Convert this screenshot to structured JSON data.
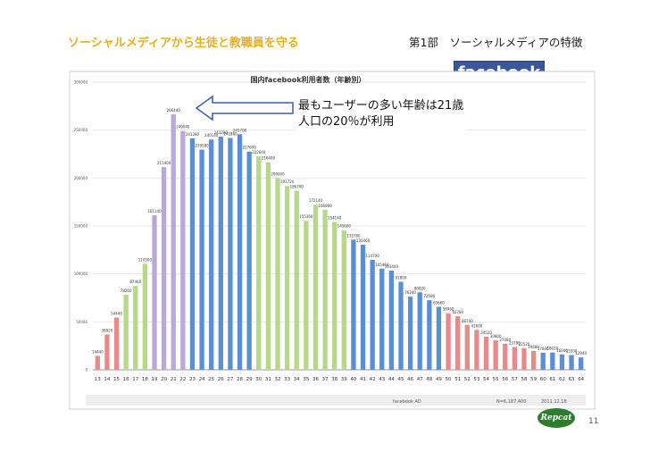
{
  "slide": {
    "title": "ソーシャルメディアから生徒と教職員を守る",
    "section": "第1部　ソーシャルメディアの特徴",
    "logo_text": "facebook",
    "callout_line1": "最もユーザーの多い年齢は21歳",
    "callout_line2": "人口の20％が利用",
    "page_number": "11",
    "brand_mark": "Repcat"
  },
  "chart_data": {
    "type": "bar",
    "title": "国内facebook利用者数（年齢別）",
    "xlabel": "",
    "ylabel": "",
    "ylim": [
      0,
      300000
    ],
    "yticks": [
      0,
      50000,
      100000,
      150000,
      200000,
      250000,
      300000
    ],
    "grid": true,
    "source": "facebook AD",
    "total_label": "N=6,187,400",
    "date_label": "2011.12.18",
    "categories": [
      "13",
      "14",
      "15",
      "16",
      "17",
      "18",
      "19",
      "20",
      "21",
      "22",
      "23",
      "24",
      "25",
      "26",
      "27",
      "28",
      "29",
      "30",
      "31",
      "32",
      "33",
      "34",
      "35",
      "36",
      "37",
      "38",
      "39",
      "40",
      "41",
      "42",
      "43",
      "44",
      "45",
      "46",
      "47",
      "48",
      "49",
      "50",
      "51",
      "52",
      "53",
      "54",
      "55",
      "56",
      "57",
      "58",
      "59",
      "60",
      "61",
      "62",
      "63",
      "64"
    ],
    "values": [
      14440,
      36920,
      54440,
      78260,
      87460,
      110500,
      161140,
      211400,
      266440,
      249040,
      241280,
      229580,
      240140,
      243280,
      241860,
      245700,
      227600,
      222640,
      216400,
      200000,
      191720,
      186700,
      155360,
      172140,
      166960,
      154140,
      145600,
      135760,
      130460,
      114700,
      105460,
      103400,
      91800,
      76240,
      80820,
      72580,
      65660,
      58960,
      55780,
      46740,
      41600,
      34520,
      30800,
      27080,
      23780,
      22520,
      19680,
      17840,
      18020,
      16040,
      15300,
      12940
    ],
    "bar_labels": [
      "14440",
      "36920",
      "54440",
      "78260",
      "87460",
      "110500",
      "161140",
      "211400",
      "266440",
      "249040",
      "241280",
      "229580",
      "240140",
      "243280",
      "241860",
      "245700",
      "227600",
      "222640",
      "216400",
      "200000",
      "191720",
      "186700",
      "155360",
      "172140",
      "166960",
      "154140",
      "145600",
      "135760",
      "130460",
      "114700",
      "105460",
      "103400",
      "91800",
      "76240",
      "80820",
      "72580",
      "65660",
      "58960",
      "55780",
      "46740",
      "41600",
      "34520",
      "30800",
      "27080",
      "23780",
      "22520",
      "19680",
      "17840",
      "18020",
      "16040",
      "15300",
      "12940"
    ],
    "colors": {
      "red": "#e98a8a",
      "green": "#b5d88a",
      "purple": "#b9a9d6",
      "blue": "#5b8fd4",
      "grid": "#e6e6e6",
      "axis": "#999999",
      "arrow": "#3a5fa8"
    }
  }
}
